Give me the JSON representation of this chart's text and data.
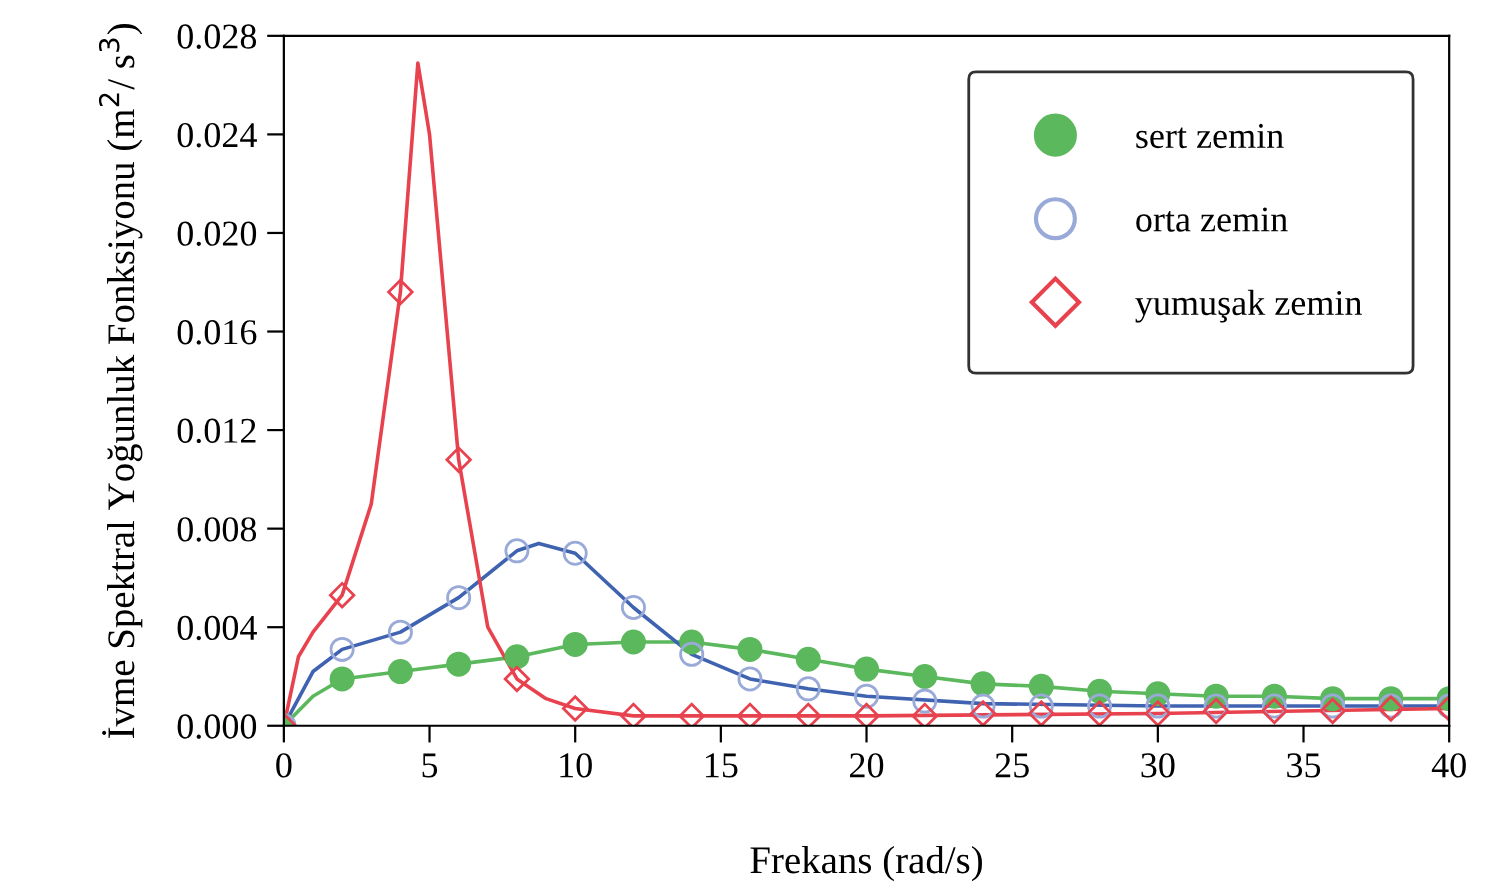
{
  "chart_data": {
    "type": "line",
    "xlabel": "Frekans (rad/s)",
    "ylabel": "İvme Spektral Yoğunluk Fonksiyonu (m$^{2}$/ s$^{3}$)",
    "xlim": [
      0,
      40
    ],
    "xticks": [
      0,
      5,
      10,
      15,
      20,
      25,
      30,
      35,
      40
    ],
    "ylim": [
      0,
      0.028
    ],
    "yticks": [
      {
        "value": 0,
        "label": "0.000"
      },
      {
        "value": 0.004,
        "label": "0.004"
      },
      {
        "value": 0.008,
        "label": "0.008"
      },
      {
        "value": 0.012,
        "label": "0.012"
      },
      {
        "value": 0.016,
        "label": "0.016"
      },
      {
        "value": 0.02,
        "label": "0.020"
      },
      {
        "value": 0.024,
        "label": "0.024"
      },
      {
        "value": 0.028,
        "label": "0.028"
      }
    ],
    "grid": false,
    "legend": "top right",
    "x": [
      0,
      2,
      4,
      6,
      8,
      10,
      12,
      14,
      16,
      18,
      20,
      22,
      24,
      26,
      28,
      30,
      32,
      34,
      36,
      38,
      40
    ],
    "series": [
      {
        "color": "#5cb85c",
        "marker": "none",
        "x": [
          0,
          1,
          2,
          4,
          6,
          8,
          10,
          12,
          14,
          16,
          18,
          20,
          22,
          24,
          26,
          28,
          30,
          32,
          34,
          36,
          38,
          40
        ],
        "values": [
          0,
          0.0012,
          0.0019,
          0.0022,
          0.0025,
          0.0028,
          0.0033,
          0.0034,
          0.0034,
          0.0031,
          0.0027,
          0.0023,
          0.002,
          0.0017,
          0.0016,
          0.0014,
          0.0013,
          0.0012,
          0.0012,
          0.0011,
          0.0011,
          0.0011
        ]
      },
      {
        "color": "#3f63b0",
        "marker": "none",
        "x": [
          0,
          1,
          2,
          4,
          6,
          8,
          8.75,
          10,
          12,
          14,
          16,
          18,
          20,
          24,
          30,
          40
        ],
        "values": [
          0,
          0.0022,
          0.0031,
          0.0038,
          0.0052,
          0.0071,
          0.0074,
          0.007,
          0.0048,
          0.0029,
          0.0019,
          0.0015,
          0.0012,
          0.0009,
          0.0008,
          0.0008
        ]
      },
      {
        "color": "#e8424f",
        "marker": "none",
        "x": [
          0,
          0.5,
          1,
          2,
          3,
          4,
          4.6,
          5,
          6,
          7,
          8,
          9,
          10,
          12,
          16,
          20,
          30,
          40
        ],
        "values": [
          0,
          0.0028,
          0.0038,
          0.0053,
          0.009,
          0.0176,
          0.0269,
          0.024,
          0.0108,
          0.004,
          0.0019,
          0.0011,
          0.0007,
          0.0004,
          0.0004,
          0.0004,
          0.0005,
          0.0007
        ]
      },
      {
        "type": "scatter",
        "name": "sert zemin",
        "color": "#5cb85c",
        "marker": "circle",
        "values": [
          0,
          0.0019,
          0.0022,
          0.0025,
          0.0028,
          0.0033,
          0.0034,
          0.0034,
          0.0031,
          0.0027,
          0.0023,
          0.002,
          0.0017,
          0.0016,
          0.0014,
          0.0013,
          0.0012,
          0.0012,
          0.0011,
          0.0011,
          0.0011
        ]
      },
      {
        "type": "scatter",
        "name": "orta zemin",
        "color": "#9aaad8",
        "marker": "circle",
        "values": [
          0,
          0.0031,
          0.0038,
          0.0052,
          0.0071,
          0.007,
          0.0048,
          0.0029,
          0.0019,
          0.0015,
          0.0012,
          0.001,
          0.0008,
          0.0008,
          0.0008,
          0.0008,
          0.0008,
          0.0008,
          0.0008,
          0.0008,
          0.0008
        ]
      },
      {
        "type": "scatter",
        "name": "yumuşak zemin",
        "color": "#e8424f",
        "marker": "diamond",
        "values": [
          0,
          0.0053,
          0.0176,
          0.0108,
          0.0019,
          0.0007,
          0.0004,
          0.0004,
          0.0004,
          0.0004,
          0.0004,
          0.0004,
          0.0005,
          0.0005,
          0.0005,
          0.0005,
          0.0006,
          0.0006,
          0.0006,
          0.0007,
          0.0007
        ]
      }
    ]
  }
}
